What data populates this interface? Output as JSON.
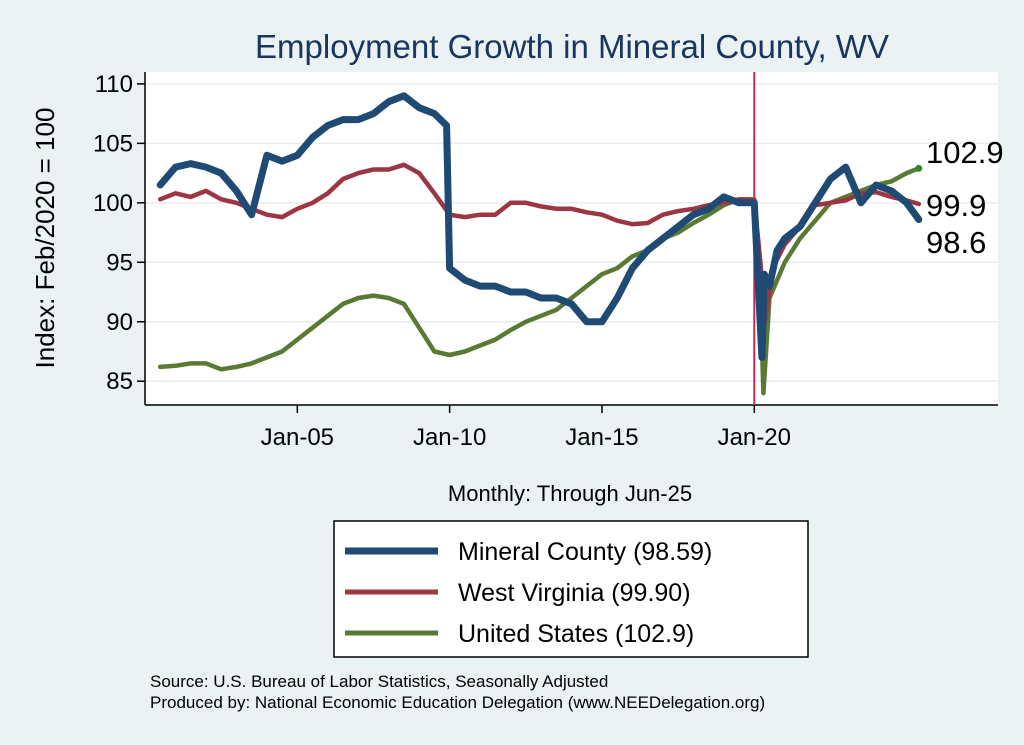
{
  "chart_data": {
    "type": "line",
    "title": "Employment Growth in Mineral  County, WV",
    "ylabel": "Index: Feb/2020 = 100",
    "xlabel": "Monthly: Through Jun-25",
    "ylim": [
      83,
      111
    ],
    "xlim": [
      2000.0,
      2028.0
    ],
    "yticks": [
      85,
      90,
      95,
      100,
      105,
      110
    ],
    "xticks": [
      {
        "label": "Jan-05",
        "value": 2005.0
      },
      {
        "label": "Jan-10",
        "value": 2010.0
      },
      {
        "label": "Jan-15",
        "value": 2015.0
      },
      {
        "label": "Jan-20",
        "value": 2020.0
      }
    ],
    "reference_line": {
      "x": 2020.0,
      "color": "#c8285a"
    },
    "series": [
      {
        "name": "Mineral  County",
        "legend": "Mineral  County (98.59)",
        "color": "#1f4a73",
        "x": [
          2000.5,
          2001.0,
          2001.5,
          2002.0,
          2002.5,
          2003.0,
          2003.5,
          2004.0,
          2004.5,
          2005.0,
          2005.5,
          2006.0,
          2006.5,
          2007.0,
          2007.5,
          2008.0,
          2008.5,
          2009.0,
          2009.5,
          2009.9,
          2010.0,
          2010.5,
          2011.0,
          2011.5,
          2012.0,
          2012.5,
          2013.0,
          2013.5,
          2014.0,
          2014.5,
          2015.0,
          2015.5,
          2016.0,
          2016.5,
          2017.0,
          2017.5,
          2018.0,
          2018.5,
          2019.0,
          2019.5,
          2020.0,
          2020.25,
          2020.33,
          2020.5,
          2020.75,
          2021.0,
          2021.5,
          2022.0,
          2022.5,
          2023.0,
          2023.5,
          2024.0,
          2024.5,
          2025.0,
          2025.4
        ],
        "values": [
          101.5,
          103.0,
          103.3,
          103.0,
          102.5,
          101.0,
          99.0,
          104.0,
          103.5,
          104.0,
          105.5,
          106.5,
          107.0,
          107.0,
          107.5,
          108.5,
          109.0,
          108.0,
          107.5,
          106.5,
          94.5,
          93.5,
          93.0,
          93.0,
          92.5,
          92.5,
          92.0,
          92.0,
          91.5,
          90.0,
          90.0,
          92.0,
          94.5,
          96.0,
          97.0,
          98.0,
          99.0,
          99.5,
          100.5,
          100.0,
          100.0,
          87.0,
          94.0,
          93.0,
          96.0,
          97.0,
          98.0,
          100.0,
          102.0,
          103.0,
          100.0,
          101.5,
          101.0,
          100.0,
          98.6
        ],
        "end_label": "98.6"
      },
      {
        "name": "West Virginia",
        "legend": "West Virginia (99.90)",
        "color": "#9c3643",
        "x": [
          2000.5,
          2001.0,
          2001.5,
          2002.0,
          2002.5,
          2003.0,
          2003.5,
          2004.0,
          2004.5,
          2005.0,
          2005.5,
          2006.0,
          2006.5,
          2007.0,
          2007.5,
          2008.0,
          2008.5,
          2009.0,
          2009.5,
          2010.0,
          2010.5,
          2011.0,
          2011.5,
          2012.0,
          2012.5,
          2013.0,
          2013.5,
          2014.0,
          2014.5,
          2015.0,
          2015.5,
          2016.0,
          2016.5,
          2017.0,
          2017.5,
          2018.0,
          2018.5,
          2019.0,
          2019.5,
          2020.0,
          2020.2,
          2020.35,
          2020.6,
          2021.0,
          2021.5,
          2022.0,
          2022.5,
          2023.0,
          2023.5,
          2024.0,
          2024.5,
          2025.0,
          2025.4
        ],
        "values": [
          100.3,
          100.8,
          100.5,
          101.0,
          100.3,
          100.0,
          99.5,
          99.0,
          98.8,
          99.5,
          100.0,
          100.8,
          102.0,
          102.5,
          102.8,
          102.8,
          103.2,
          102.5,
          100.8,
          99.0,
          98.8,
          99.0,
          99.0,
          100.0,
          100.0,
          99.7,
          99.5,
          99.5,
          99.2,
          99.0,
          98.5,
          98.2,
          98.3,
          99.0,
          99.3,
          99.5,
          99.8,
          100.0,
          100.3,
          100.2,
          95.0,
          90.0,
          94.5,
          96.5,
          98.0,
          99.8,
          100.0,
          100.2,
          100.8,
          100.9,
          100.5,
          100.2,
          99.9
        ],
        "end_label": "99.9"
      },
      {
        "name": "United States",
        "legend": "United States (102.9)",
        "color": "#5a7a33",
        "x": [
          2000.5,
          2001.0,
          2001.5,
          2002.0,
          2002.5,
          2003.0,
          2003.5,
          2004.0,
          2004.5,
          2005.0,
          2005.5,
          2006.0,
          2006.5,
          2007.0,
          2007.5,
          2008.0,
          2008.5,
          2009.0,
          2009.5,
          2010.0,
          2010.5,
          2011.0,
          2011.5,
          2012.0,
          2012.5,
          2013.0,
          2013.5,
          2014.0,
          2014.5,
          2015.0,
          2015.5,
          2016.0,
          2016.5,
          2017.0,
          2017.5,
          2018.0,
          2018.5,
          2019.0,
          2019.5,
          2020.0,
          2020.17,
          2020.3,
          2020.5,
          2021.0,
          2021.5,
          2022.0,
          2022.5,
          2023.0,
          2023.5,
          2024.0,
          2024.5,
          2025.0,
          2025.4
        ],
        "values": [
          86.2,
          86.3,
          86.5,
          86.5,
          86.0,
          86.2,
          86.5,
          87.0,
          87.5,
          88.5,
          89.5,
          90.5,
          91.5,
          92.0,
          92.2,
          92.0,
          91.5,
          89.5,
          87.5,
          87.2,
          87.5,
          88.0,
          88.5,
          89.3,
          90.0,
          90.5,
          91.0,
          92.0,
          93.0,
          94.0,
          94.5,
          95.5,
          96.0,
          97.0,
          97.5,
          98.3,
          99.0,
          99.8,
          100.3,
          100.3,
          95.0,
          84.0,
          92.0,
          95.0,
          97.0,
          98.5,
          100.0,
          100.5,
          101.0,
          101.5,
          101.8,
          102.5,
          102.9
        ],
        "end_label": "102.9"
      }
    ]
  },
  "source_line": "Source: U.S. Bureau of Labor Statistics, Seasonally Adjusted",
  "produced_line": "Produced by: National Economic Education Delegation (www.NEEDelegation.org)"
}
